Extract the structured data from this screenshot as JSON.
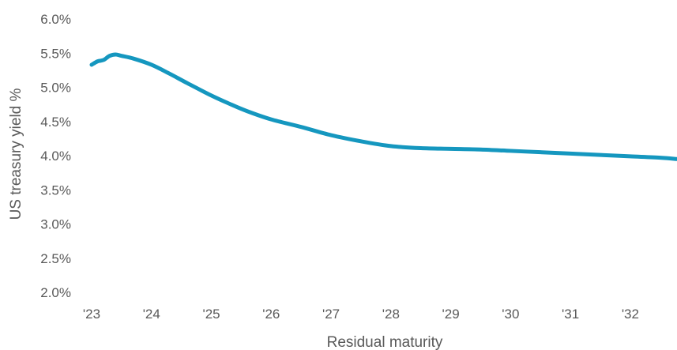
{
  "chart_data": {
    "type": "line",
    "title": "",
    "xlabel": "Residual maturity",
    "ylabel": "US treasury yield %",
    "ylim": [
      2.0,
      6.0
    ],
    "xlim": [
      2023.0,
      2032.78
    ],
    "grid": false,
    "legend": "none",
    "y_ticks": [
      {
        "value": 2.0,
        "label": "2.0%"
      },
      {
        "value": 2.5,
        "label": "2.5%"
      },
      {
        "value": 3.0,
        "label": "3.0%"
      },
      {
        "value": 3.5,
        "label": "3.5%"
      },
      {
        "value": 4.0,
        "label": "4.0%"
      },
      {
        "value": 4.5,
        "label": "4.5%"
      },
      {
        "value": 5.0,
        "label": "5.0%"
      },
      {
        "value": 5.5,
        "label": "5.5%"
      },
      {
        "value": 6.0,
        "label": "6.0%"
      }
    ],
    "x_ticks": [
      {
        "value": 2023,
        "label": "'23"
      },
      {
        "value": 2024,
        "label": "'24"
      },
      {
        "value": 2025,
        "label": "'25"
      },
      {
        "value": 2026,
        "label": "'26"
      },
      {
        "value": 2027,
        "label": "'27"
      },
      {
        "value": 2028,
        "label": "'28"
      },
      {
        "value": 2029,
        "label": "'29"
      },
      {
        "value": 2030,
        "label": "'30"
      },
      {
        "value": 2031,
        "label": "'31"
      },
      {
        "value": 2032,
        "label": "'32"
      }
    ],
    "series": [
      {
        "color": "#1597bf",
        "points": [
          {
            "x": 2023.0,
            "y": 5.33
          },
          {
            "x": 2023.1,
            "y": 5.38
          },
          {
            "x": 2023.2,
            "y": 5.4
          },
          {
            "x": 2023.3,
            "y": 5.46
          },
          {
            "x": 2023.4,
            "y": 5.48
          },
          {
            "x": 2023.5,
            "y": 5.46
          },
          {
            "x": 2023.7,
            "y": 5.42
          },
          {
            "x": 2024.0,
            "y": 5.33
          },
          {
            "x": 2024.3,
            "y": 5.2
          },
          {
            "x": 2024.6,
            "y": 5.06
          },
          {
            "x": 2025.0,
            "y": 4.88
          },
          {
            "x": 2025.3,
            "y": 4.76
          },
          {
            "x": 2025.6,
            "y": 4.65
          },
          {
            "x": 2026.0,
            "y": 4.53
          },
          {
            "x": 2026.5,
            "y": 4.42
          },
          {
            "x": 2027.0,
            "y": 4.3
          },
          {
            "x": 2027.5,
            "y": 4.21
          },
          {
            "x": 2028.0,
            "y": 4.14
          },
          {
            "x": 2028.5,
            "y": 4.11
          },
          {
            "x": 2029.0,
            "y": 4.1
          },
          {
            "x": 2029.5,
            "y": 4.09
          },
          {
            "x": 2030.0,
            "y": 4.07
          },
          {
            "x": 2030.5,
            "y": 4.05
          },
          {
            "x": 2031.0,
            "y": 4.03
          },
          {
            "x": 2031.5,
            "y": 4.01
          },
          {
            "x": 2032.0,
            "y": 3.99
          },
          {
            "x": 2032.5,
            "y": 3.97
          },
          {
            "x": 2032.78,
            "y": 3.95
          }
        ]
      }
    ]
  }
}
